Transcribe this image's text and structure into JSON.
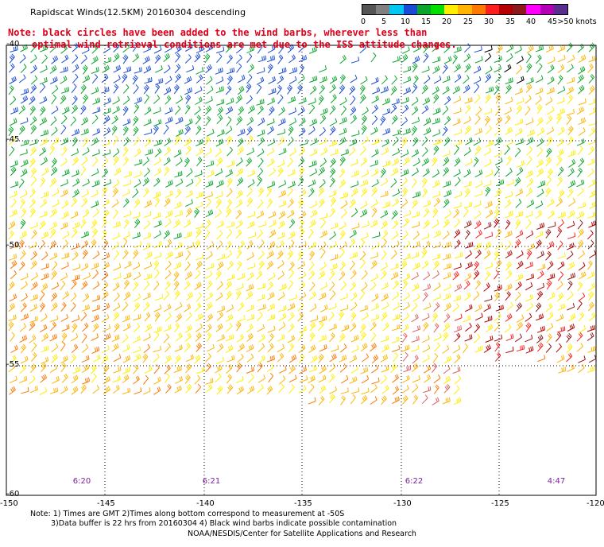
{
  "title": "Rapidscat Winds(12.5KM) 20160304 descending",
  "note": {
    "line1": "Note: black circles have been added to the wind barbs, wherever less than",
    "line2": "optimal wind retrieval conditions are met due to the ISS attitude changes."
  },
  "legend": {
    "colors": [
      "#555555",
      "#808080",
      "#00c8f0",
      "#1a4bd6",
      "#0aa52a",
      "#00e000",
      "#ffee00",
      "#ffb400",
      "#ff7800",
      "#ff1e1e",
      "#b40000",
      "#8b1a1a",
      "#ff00ff",
      "#b400b4",
      "#5a2d8c"
    ],
    "labels": [
      "0",
      "5",
      "10",
      "15",
      "20",
      "25",
      "30",
      "35",
      "40",
      "45",
      ">50 knots"
    ]
  },
  "axes": {
    "lat_labels": [
      "-40",
      "-45",
      "-50",
      "-55",
      "-60"
    ],
    "lon_labels": [
      "-150",
      "-145",
      "-140",
      "-135",
      "-130",
      "-125",
      "-120"
    ]
  },
  "time_labels": [
    "6:20",
    "6:21",
    "6:22",
    "4:47"
  ],
  "footnotes": {
    "line1": "Note: 1) Times are GMT 2)Times along bottom correspond to measurement at -50S",
    "line2": "3)Data buffer is 22 hrs from 20160304 4) Black wind barbs indicate possible contamination",
    "credit": "NOAA/NESDIS/Center for Satellite Applications and Research"
  },
  "map": {
    "lat_range": [
      -60,
      -40
    ],
    "lon_range": [
      -150,
      -120
    ],
    "wind_speed_regions": [
      {
        "lat_band": "-40 to -45",
        "speed_knots": "10-20",
        "colors": [
          "blue",
          "green"
        ]
      },
      {
        "lat_band": "-45 to -48",
        "speed_knots": "15-25",
        "colors": [
          "green",
          "yellow"
        ]
      },
      {
        "lat_band": "-48 to -54",
        "speed_knots": "20-30",
        "colors": [
          "yellow",
          "orange"
        ]
      },
      {
        "lat_band": "-49 to -55 east of -130",
        "speed_knots": "30-40",
        "colors": [
          "red",
          "dark red"
        ]
      }
    ]
  }
}
